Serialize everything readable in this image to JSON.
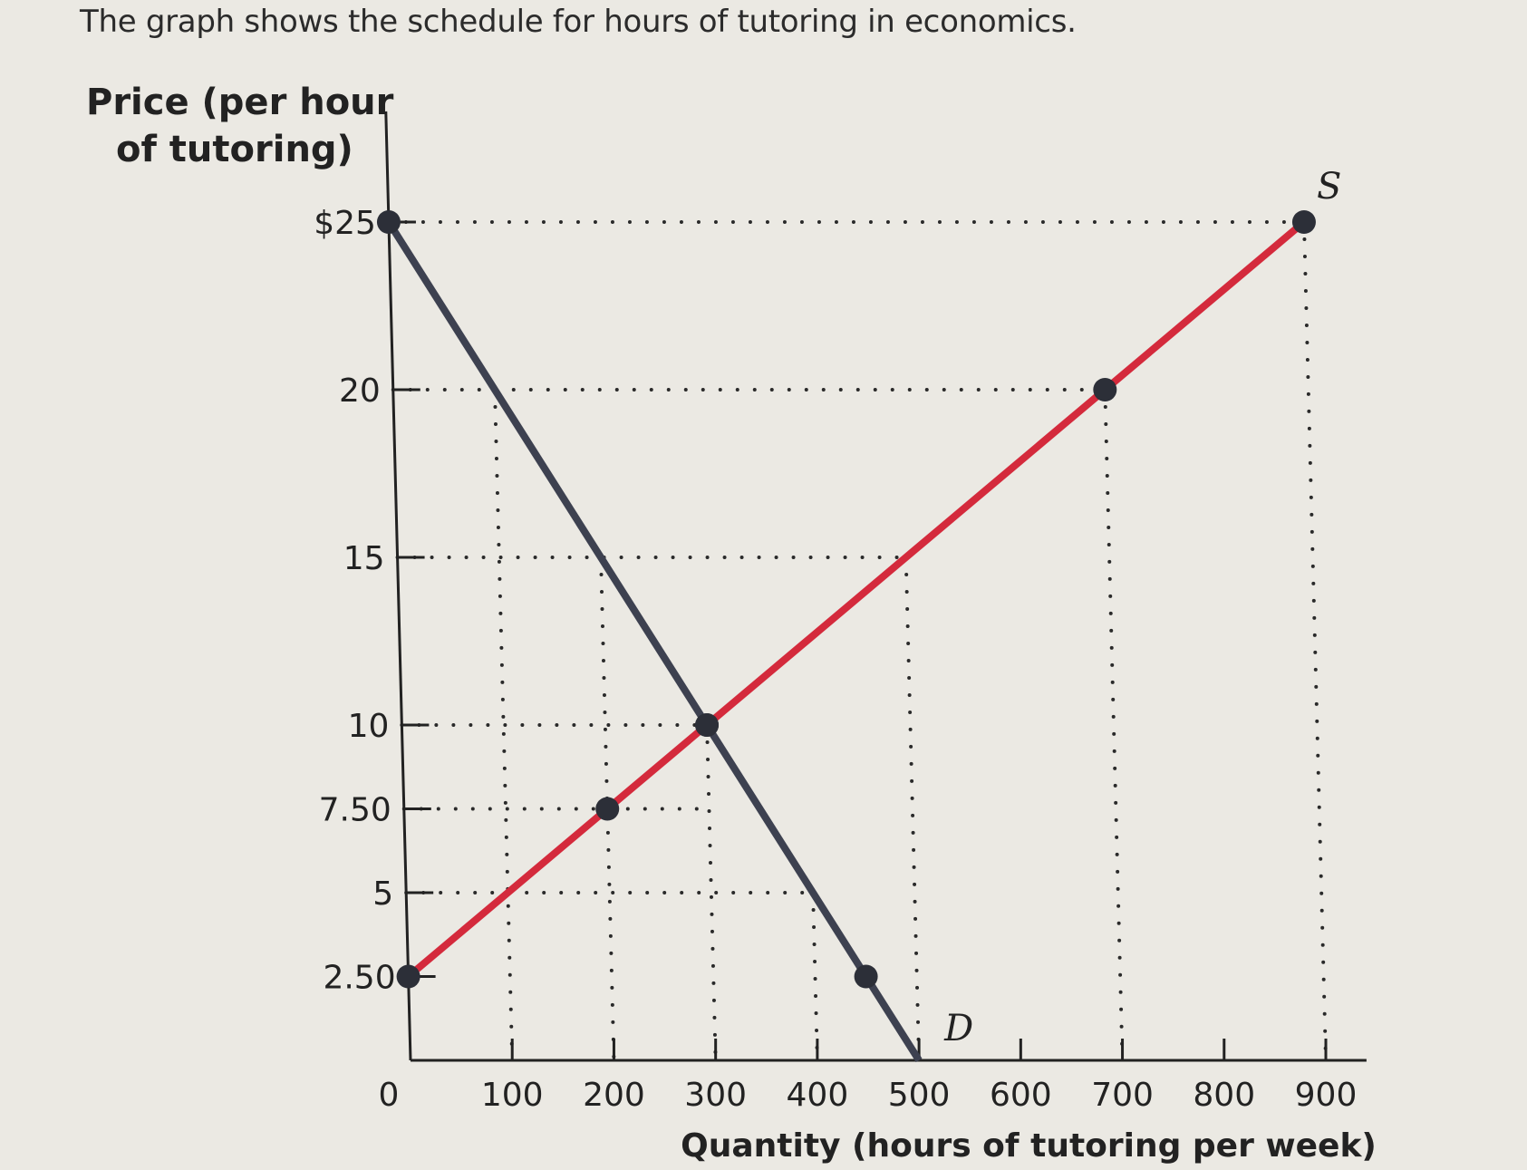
{
  "question": "The graph shows the schedule for hours of tutoring in economics.",
  "chart_data": {
    "type": "line",
    "ylabel": [
      "Price (per hour",
      "of tutoring)"
    ],
    "xlabel": "Quantity (hours of tutoring per week)",
    "xlim": [
      0,
      900
    ],
    "ylim": [
      0,
      25
    ],
    "x_ticks": [
      "0",
      "100",
      "200",
      "300",
      "400",
      "500",
      "600",
      "700",
      "800",
      "900"
    ],
    "y_ticks": [
      {
        "value": 2.5,
        "label": "2.50"
      },
      {
        "value": 5,
        "label": "5"
      },
      {
        "value": 7.5,
        "label": "7.50"
      },
      {
        "value": 10,
        "label": "10"
      },
      {
        "value": 15,
        "label": "15"
      },
      {
        "value": 20,
        "label": "20"
      },
      {
        "value": 25,
        "label": "$25"
      }
    ],
    "series": [
      {
        "name": "D",
        "color": "#3d4150",
        "line": [
          [
            0,
            25
          ],
          [
            500,
            0
          ]
        ],
        "points": [
          [
            0,
            25
          ],
          [
            300,
            10
          ],
          [
            450,
            2.5
          ]
        ]
      },
      {
        "name": "S",
        "color": "#d42a3c",
        "line": [
          [
            0,
            2.5
          ],
          [
            900,
            25
          ]
        ],
        "points": [
          [
            0,
            2.5
          ],
          [
            200,
            7.5
          ],
          [
            300,
            10
          ],
          [
            700,
            20
          ],
          [
            900,
            25
          ]
        ]
      }
    ],
    "guides": [
      {
        "from": [
          0,
          25
        ],
        "to": [
          900,
          25
        ]
      },
      {
        "from": [
          0,
          20
        ],
        "to": [
          700,
          20
        ]
      },
      {
        "from": [
          0,
          15
        ],
        "to": [
          500,
          15
        ]
      },
      {
        "from": [
          0,
          10
        ],
        "to": [
          300,
          10
        ]
      },
      {
        "from": [
          0,
          7.5
        ],
        "to": [
          300,
          7.5
        ]
      },
      {
        "from": [
          0,
          5
        ],
        "to": [
          400,
          5
        ]
      },
      {
        "from": [
          100,
          20
        ],
        "to": [
          100,
          0
        ]
      },
      {
        "from": [
          200,
          15
        ],
        "to": [
          200,
          0
        ]
      },
      {
        "from": [
          300,
          10
        ],
        "to": [
          300,
          0
        ]
      },
      {
        "from": [
          400,
          5
        ],
        "to": [
          400,
          0
        ]
      },
      {
        "from": [
          500,
          15
        ],
        "to": [
          500,
          0
        ]
      },
      {
        "from": [
          700,
          20
        ],
        "to": [
          700,
          0
        ]
      },
      {
        "from": [
          900,
          25
        ],
        "to": [
          900,
          0
        ]
      }
    ],
    "grid": false
  }
}
